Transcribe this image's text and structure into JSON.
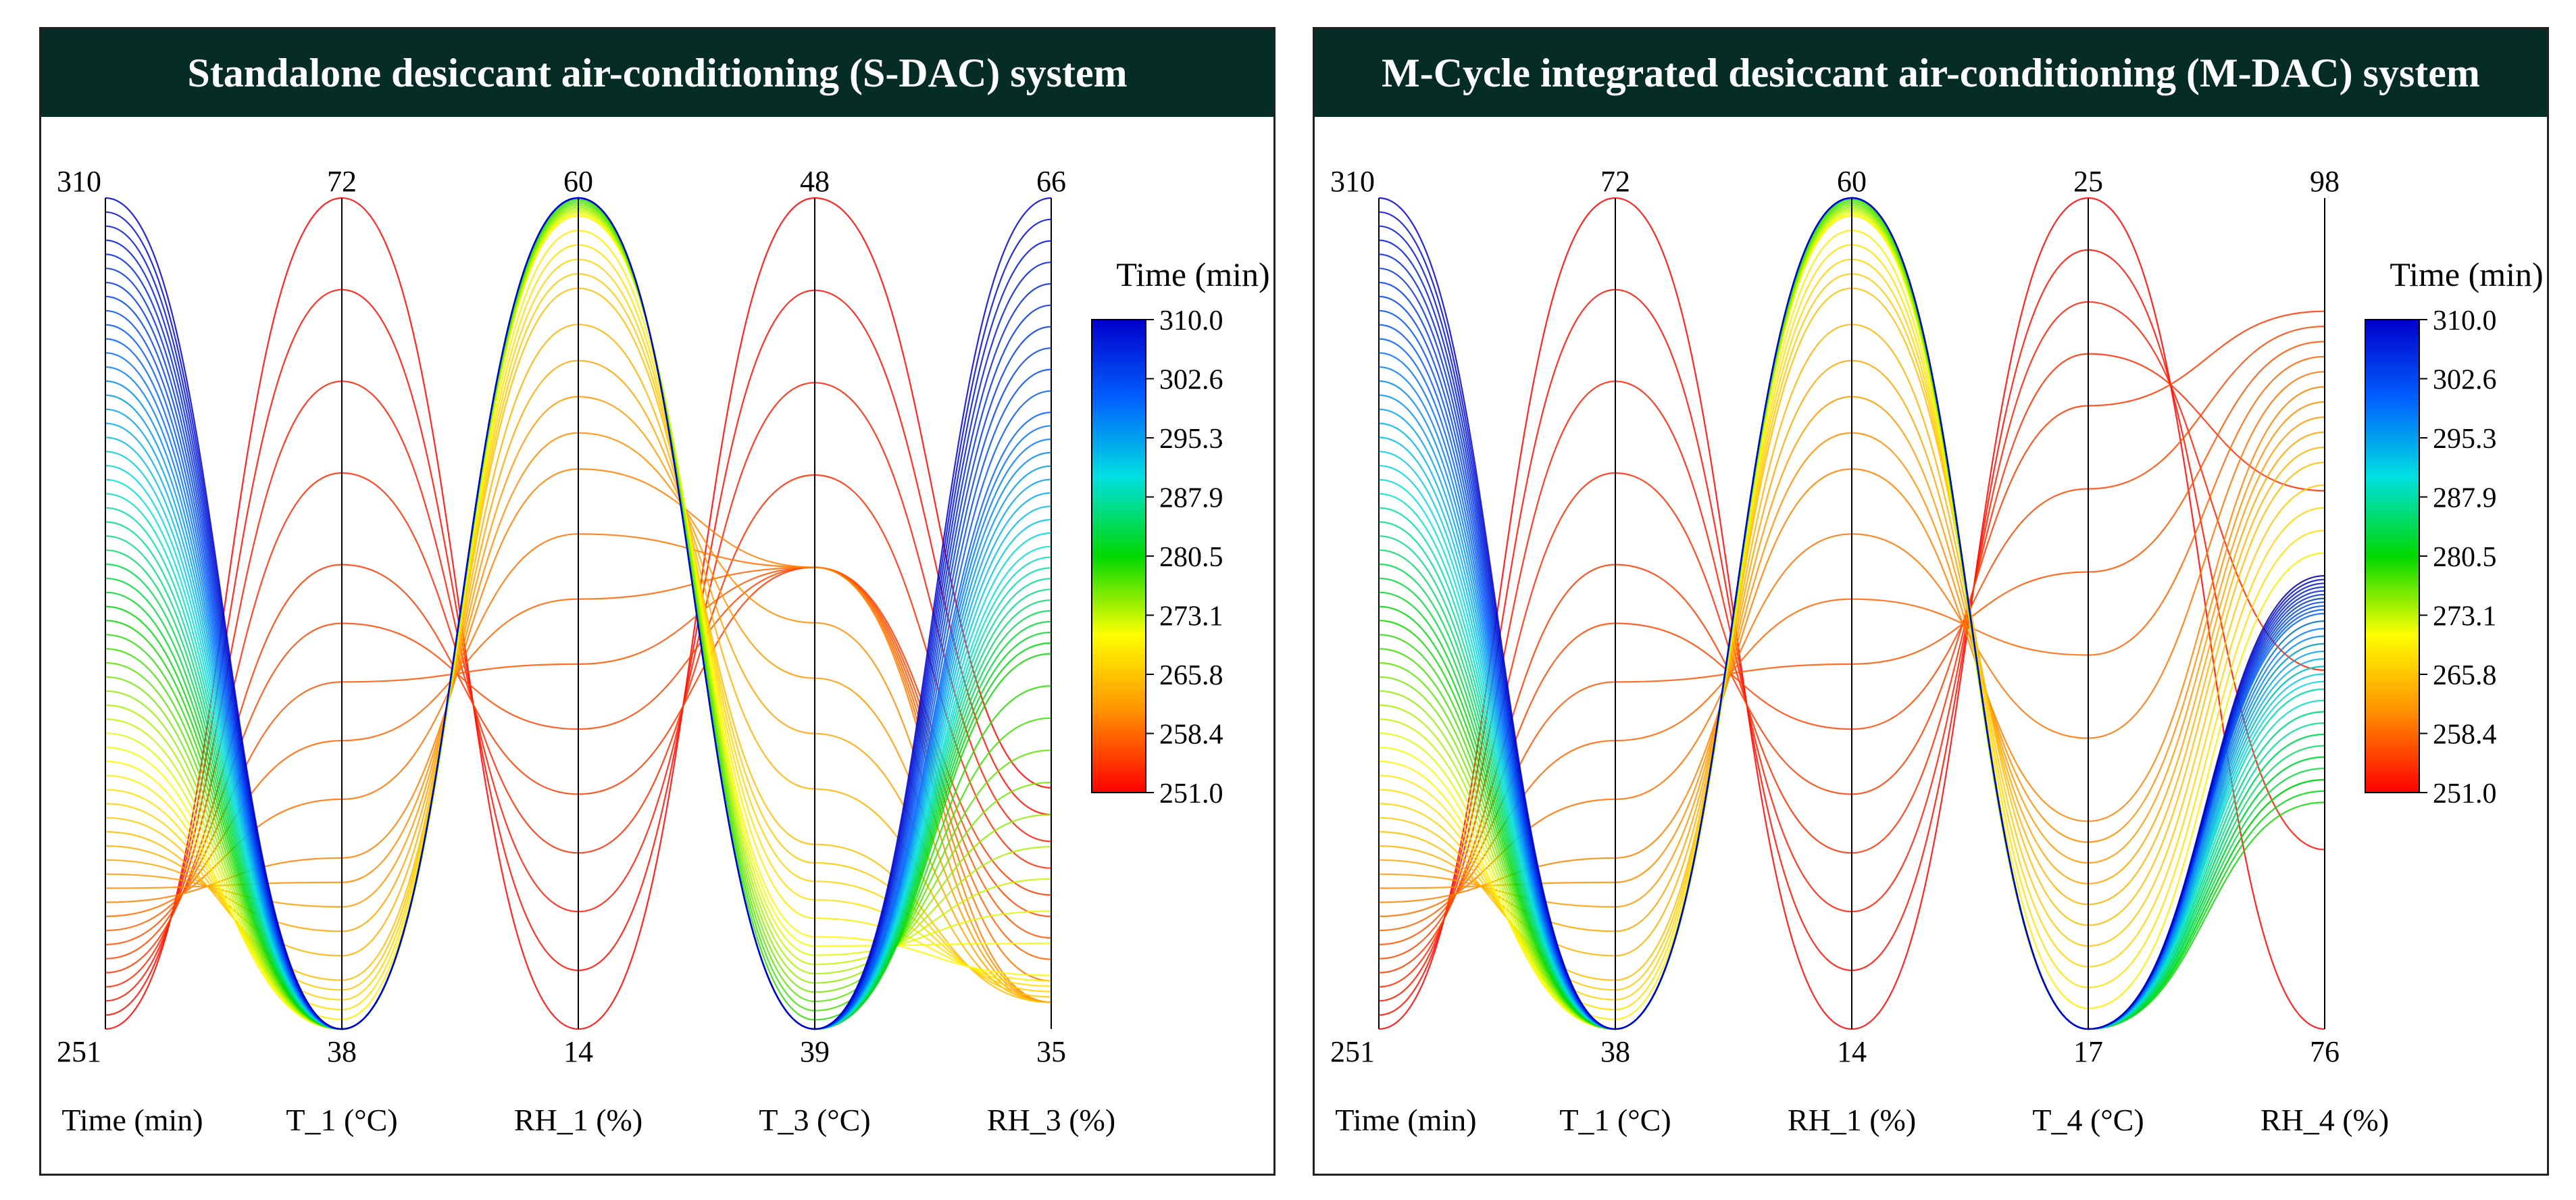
{
  "colorbar": {
    "title": "Time (min)",
    "ticks": [
      "310.0",
      "302.6",
      "295.3",
      "287.9",
      "280.5",
      "273.1",
      "265.8",
      "258.4",
      "251.0"
    ],
    "colors": [
      "#ff0000",
      "#ff8c00",
      "#ffff00",
      "#00d800",
      "#00e0e0",
      "#0060ff",
      "#0000cc"
    ]
  },
  "chart_data": [
    {
      "type": "parallel_coordinates",
      "title": "Standalone desiccant air-conditioning (S-DAC) system",
      "axes": [
        {
          "label": "Time (min)",
          "min": "251",
          "max": "310"
        },
        {
          "label": "T_1 (°C)",
          "min": "38",
          "max": "72"
        },
        {
          "label": "RH_1 (%)",
          "min": "14",
          "max": "60"
        },
        {
          "label": "T_3 (°C)",
          "min": "39",
          "max": "48"
        },
        {
          "label": "RH_3 (%)",
          "min": "35",
          "max": "66"
        }
      ],
      "color_by": "Time (min)",
      "time_range": [
        251,
        310
      ],
      "line_count": 60,
      "series_profile": [
        {
          "time": 251,
          "values": [
            251,
            72,
            14,
            48,
            44
          ]
        },
        {
          "time": 255,
          "values": [
            255,
            57,
            27,
            44,
            40
          ]
        },
        {
          "time": 260,
          "values": [
            260,
            45,
            45,
            44,
            36
          ]
        },
        {
          "time": 265,
          "values": [
            265,
            40,
            55,
            41,
            36
          ]
        },
        {
          "time": 270,
          "values": [
            270,
            38,
            59,
            40,
            37
          ]
        },
        {
          "time": 280,
          "values": [
            280,
            38,
            60,
            39,
            49
          ]
        },
        {
          "time": 290,
          "values": [
            290,
            38,
            60,
            39,
            53
          ]
        },
        {
          "time": 300,
          "values": [
            300,
            38,
            60,
            39,
            58
          ]
        },
        {
          "time": 310,
          "values": [
            310,
            38,
            60,
            39,
            66
          ]
        }
      ]
    },
    {
      "type": "parallel_coordinates",
      "title": "M-Cycle integrated desiccant air-conditioning (M-DAC) system",
      "axes": [
        {
          "label": "Time (min)",
          "min": "251",
          "max": "310"
        },
        {
          "label": "T_1 (°C)",
          "min": "38",
          "max": "72"
        },
        {
          "label": "RH_1 (%)",
          "min": "14",
          "max": "60"
        },
        {
          "label": "T_4 (°C)",
          "min": "17",
          "max": "25"
        },
        {
          "label": "RH_4 (%)",
          "min": "76",
          "max": "98"
        }
      ],
      "color_by": "Time (min)",
      "time_range": [
        251,
        310
      ],
      "line_count": 60,
      "series_profile": [
        {
          "time": 251,
          "values": [
            251,
            72,
            14,
            25,
            76
          ]
        },
        {
          "time": 255,
          "values": [
            255,
            57,
            27,
            23,
            95
          ]
        },
        {
          "time": 260,
          "values": [
            260,
            45,
            45,
            19,
            93
          ]
        },
        {
          "time": 265,
          "values": [
            265,
            40,
            55,
            18,
            91
          ]
        },
        {
          "time": 270,
          "values": [
            270,
            38,
            59,
            17,
            88
          ]
        },
        {
          "time": 280,
          "values": [
            280,
            38,
            60,
            17,
            82
          ]
        },
        {
          "time": 290,
          "values": [
            290,
            38,
            60,
            17,
            85
          ]
        },
        {
          "time": 300,
          "values": [
            300,
            38,
            60,
            17,
            87
          ]
        },
        {
          "time": 310,
          "values": [
            310,
            38,
            60,
            17,
            88
          ]
        }
      ]
    }
  ]
}
